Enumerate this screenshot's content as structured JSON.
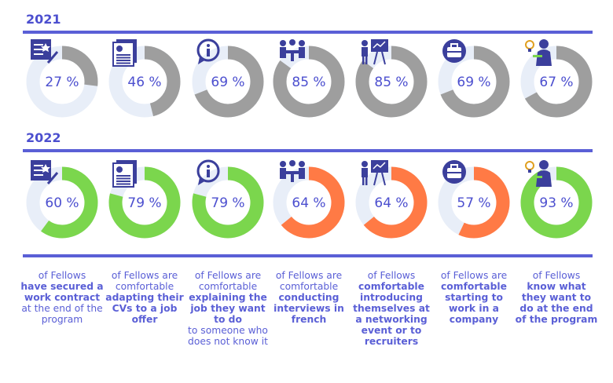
{
  "years": {
    "first": "2021",
    "second": "2022"
  },
  "colors": {
    "accent": "#5a5fd6",
    "track": "#e8eef8",
    "gray": "#9e9e9e",
    "green": "#7bd64d",
    "orange": "#ff7a45"
  },
  "icons": [
    "certificate-icon",
    "cv-icon",
    "info-icon",
    "interview-icon",
    "presentation-icon",
    "briefcase-icon",
    "idea-person-icon"
  ],
  "chart_data": [
    {
      "type": "donut",
      "title": "2021",
      "categories": [
        "work contract",
        "adapt CV",
        "explain job",
        "interviews in french",
        "introduce themselves",
        "start work",
        "know what they want"
      ],
      "values": [
        27,
        46,
        69,
        85,
        85,
        69,
        67
      ],
      "labels": [
        "27 %",
        "46 %",
        "69 %",
        "85 %",
        "85 %",
        "69 %",
        "67 %"
      ],
      "colors": [
        "#9e9e9e",
        "#9e9e9e",
        "#9e9e9e",
        "#9e9e9e",
        "#9e9e9e",
        "#9e9e9e",
        "#9e9e9e"
      ]
    },
    {
      "type": "donut",
      "title": "2022",
      "categories": [
        "work contract",
        "adapt CV",
        "explain job",
        "interviews in french",
        "introduce themselves",
        "start work",
        "know what they want"
      ],
      "values": [
        60,
        79,
        79,
        64,
        64,
        57,
        93
      ],
      "labels": [
        "60 %",
        "79 %",
        "79 %",
        "64 %",
        "64 %",
        "57 %",
        "93 %"
      ],
      "colors": [
        "#7bd64d",
        "#7bd64d",
        "#7bd64d",
        "#ff7a45",
        "#ff7a45",
        "#ff7a45",
        "#7bd64d"
      ]
    }
  ],
  "captions": [
    {
      "pre": "of Fellows",
      "body": "have secured a work contract",
      "post": "at the end of the program"
    },
    {
      "pre": "of Fellows are comfortable",
      "body": "adapting their CVs to a job offer",
      "post": ""
    },
    {
      "pre": "of Fellows are comfortable",
      "body": "explaining the job they want to do",
      "post": "to someone who does not know it"
    },
    {
      "pre": "of Fellows are comfortable",
      "body": "conducting interviews in french",
      "post": ""
    },
    {
      "pre": "of Fellows",
      "body": "comfortable introducing themselves at a networking event or to recruiters",
      "post": ""
    },
    {
      "pre": "of Fellows are",
      "body": "comfortable starting to work in a company",
      "post": ""
    },
    {
      "pre": "of Fellows",
      "body": "know what they want to do at the end of the program",
      "post": ""
    }
  ]
}
